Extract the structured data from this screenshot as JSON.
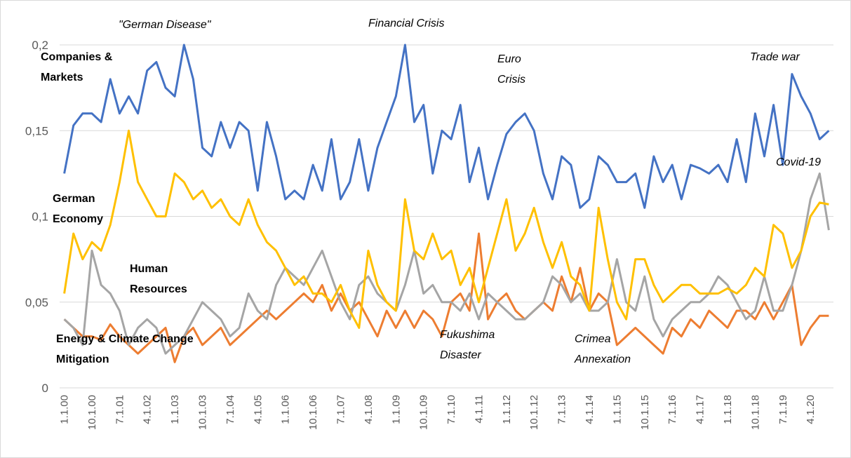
{
  "chart_data": {
    "type": "line",
    "categories": [
      "1.1.00",
      null,
      null,
      "10.1.00",
      null,
      null,
      "7.1.01",
      null,
      null,
      "4.1.02",
      null,
      null,
      "1.1.03",
      null,
      null,
      "10.1.03",
      null,
      null,
      "7.1.04",
      null,
      null,
      "4.1.05",
      null,
      null,
      "1.1.06",
      null,
      null,
      "10.1.06",
      null,
      null,
      "7.1.07",
      null,
      null,
      "4.1.08",
      null,
      null,
      "1.1.09",
      null,
      null,
      "10.1.09",
      null,
      null,
      "7.1.10",
      null,
      null,
      "4.1.11",
      null,
      null,
      "1.1.12",
      null,
      null,
      "10.1.12",
      null,
      null,
      "7.1.13",
      null,
      null,
      "4.1.14",
      null,
      null,
      "1.1.15",
      null,
      null,
      "10.1.15",
      null,
      null,
      "7.1.16",
      null,
      null,
      "4.1.17",
      null,
      null,
      "1.1.18",
      null,
      null,
      "10.1.18",
      null,
      null,
      "7.1.19",
      null,
      null,
      "4.1.20",
      null,
      null
    ],
    "series": [
      {
        "name": "Companies & Markets",
        "color": "#4472c4",
        "values": [
          0.125,
          0.153,
          0.16,
          0.16,
          0.155,
          0.18,
          0.16,
          0.17,
          0.16,
          0.185,
          0.19,
          0.175,
          0.17,
          0.2,
          0.18,
          0.14,
          0.135,
          0.155,
          0.14,
          0.155,
          0.15,
          0.115,
          0.155,
          0.135,
          0.11,
          0.115,
          0.11,
          0.13,
          0.115,
          0.145,
          0.11,
          0.12,
          0.145,
          0.115,
          0.14,
          0.155,
          0.17,
          0.2,
          0.155,
          0.165,
          0.125,
          0.15,
          0.145,
          0.165,
          0.12,
          0.14,
          0.11,
          0.13,
          0.148,
          0.155,
          0.16,
          0.15,
          0.125,
          0.11,
          0.135,
          0.13,
          0.105,
          0.11,
          0.135,
          0.13,
          0.12,
          0.12,
          0.125,
          0.105,
          0.135,
          0.12,
          0.13,
          0.11,
          0.13,
          0.128,
          0.125,
          0.13,
          0.12,
          0.145,
          0.12,
          0.16,
          0.135,
          0.165,
          0.13,
          0.183,
          0.17,
          0.16,
          0.145,
          0.15
        ]
      },
      {
        "name": "Energy & Climate Change Mitigation",
        "color": "#ed7d31",
        "values": [
          0.04,
          0.035,
          0.03,
          0.03,
          0.028,
          0.037,
          0.03,
          0.025,
          0.02,
          0.025,
          0.03,
          0.035,
          0.015,
          0.03,
          0.035,
          0.025,
          0.03,
          0.035,
          0.025,
          0.03,
          0.035,
          0.04,
          0.045,
          0.04,
          0.045,
          0.05,
          0.055,
          0.05,
          0.06,
          0.045,
          0.055,
          0.045,
          0.05,
          0.04,
          0.03,
          0.045,
          0.035,
          0.045,
          0.035,
          0.045,
          0.04,
          0.03,
          0.05,
          0.055,
          0.045,
          0.09,
          0.04,
          0.05,
          0.055,
          0.045,
          0.04,
          0.045,
          0.05,
          0.045,
          0.065,
          0.05,
          0.07,
          0.045,
          0.055,
          0.05,
          0.025,
          0.03,
          0.035,
          0.03,
          0.025,
          0.02,
          0.035,
          0.03,
          0.04,
          0.035,
          0.045,
          0.04,
          0.035,
          0.045,
          0.045,
          0.04,
          0.05,
          0.04,
          0.05,
          0.06,
          0.025,
          0.035,
          0.042,
          0.042
        ]
      },
      {
        "name": "Human Resources",
        "color": "#a5a5a5",
        "values": [
          0.04,
          0.035,
          0.025,
          0.08,
          0.06,
          0.055,
          0.045,
          0.025,
          0.035,
          0.04,
          0.035,
          0.02,
          0.025,
          0.03,
          0.04,
          0.05,
          0.045,
          0.04,
          0.03,
          0.035,
          0.055,
          0.045,
          0.04,
          0.06,
          0.07,
          0.065,
          0.06,
          0.07,
          0.08,
          0.065,
          0.05,
          0.04,
          0.06,
          0.065,
          0.055,
          0.05,
          0.045,
          0.06,
          0.08,
          0.055,
          0.06,
          0.05,
          0.05,
          0.045,
          0.055,
          0.04,
          0.055,
          0.05,
          0.045,
          0.04,
          0.04,
          0.045,
          0.05,
          0.065,
          0.06,
          0.05,
          0.055,
          0.045,
          0.045,
          0.05,
          0.075,
          0.05,
          0.045,
          0.065,
          0.04,
          0.03,
          0.04,
          0.045,
          0.05,
          0.05,
          0.055,
          0.065,
          0.06,
          0.05,
          0.04,
          0.045,
          0.065,
          0.045,
          0.045,
          0.06,
          0.08,
          0.11,
          0.125,
          0.092
        ]
      },
      {
        "name": "German Economy",
        "color": "#ffc000",
        "values": [
          0.055,
          0.09,
          0.075,
          0.085,
          0.08,
          0.095,
          0.12,
          0.15,
          0.12,
          0.11,
          0.1,
          0.1,
          0.125,
          0.12,
          0.11,
          0.115,
          0.105,
          0.11,
          0.1,
          0.095,
          0.11,
          0.095,
          0.085,
          0.08,
          0.07,
          0.06,
          0.065,
          0.055,
          0.055,
          0.05,
          0.06,
          0.045,
          0.035,
          0.08,
          0.06,
          0.05,
          0.045,
          0.11,
          0.08,
          0.075,
          0.09,
          0.075,
          0.08,
          0.06,
          0.07,
          0.05,
          0.07,
          0.09,
          0.11,
          0.08,
          0.09,
          0.105,
          0.085,
          0.07,
          0.085,
          0.065,
          0.06,
          0.045,
          0.105,
          0.075,
          0.05,
          0.04,
          0.075,
          0.075,
          0.06,
          0.05,
          0.055,
          0.06,
          0.06,
          0.055,
          0.055,
          0.055,
          0.058,
          0.055,
          0.06,
          0.07,
          0.065,
          0.095,
          0.09,
          0.07,
          0.08,
          0.1,
          0.108,
          0.107
        ]
      }
    ],
    "annotations": [
      "\"German Disease\"",
      "Financial Crisis",
      "Euro Crisis",
      "Trade war",
      "Covid-19",
      "Fukushima Disaster",
      "Crimea Annexation"
    ],
    "ylim": [
      0,
      0.2
    ],
    "yticks": [
      0,
      {
        "value": 0.05,
        "label": "0,05"
      },
      {
        "value": 0.1,
        "label": "0,1"
      },
      {
        "value": 0.15,
        "label": "0,15"
      },
      {
        "value": 0.2,
        "label": "0,2"
      }
    ],
    "grid": true
  }
}
